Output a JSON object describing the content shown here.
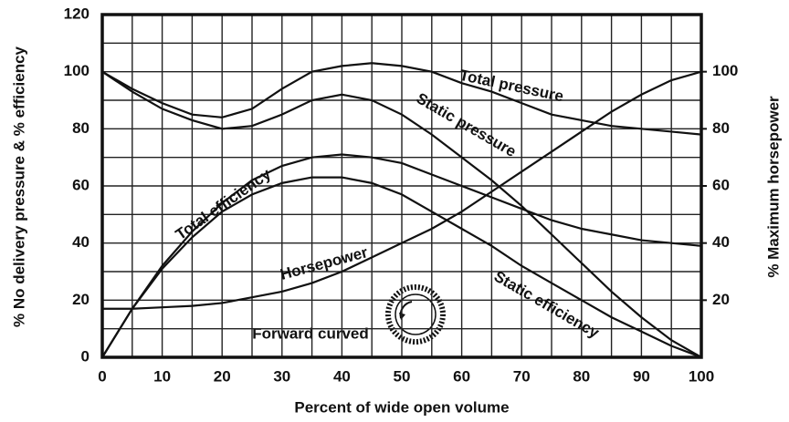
{
  "chart_data": {
    "type": "line",
    "x_label": "Percent of wide open volume",
    "y_label": "% No delivery pressure & % efficiency",
    "y2_label": "% Maximum horsepower",
    "annotation": "Forward curved",
    "x": [
      0,
      5,
      10,
      15,
      20,
      25,
      30,
      35,
      40,
      45,
      50,
      55,
      60,
      65,
      70,
      75,
      80,
      85,
      90,
      95,
      100
    ],
    "series": [
      {
        "name": "Total pressure",
        "color": "#111111",
        "values": [
          100,
          94,
          89,
          85,
          84,
          87,
          94,
          100,
          102,
          103,
          102,
          100,
          96,
          93,
          89,
          85,
          83,
          81,
          80,
          79,
          78
        ]
      },
      {
        "name": "Static pressure",
        "color": "#111111",
        "values": [
          100,
          93,
          87,
          83,
          80,
          81,
          85,
          90,
          92,
          90,
          85,
          78,
          70,
          62,
          53,
          43,
          33,
          23,
          14,
          6,
          0
        ]
      },
      {
        "name": "Total efficiency",
        "color": "#111111",
        "values": [
          0,
          17,
          32,
          44,
          54,
          62,
          67,
          70,
          71,
          70,
          68,
          64,
          60,
          56,
          52,
          48,
          45,
          43,
          41,
          40,
          39
        ]
      },
      {
        "name": "Static efficiency",
        "color": "#111111",
        "values": [
          0,
          17,
          31,
          42,
          51,
          57,
          61,
          63,
          63,
          61,
          57,
          51,
          45,
          39,
          32,
          26,
          20,
          14,
          9,
          4,
          0
        ]
      },
      {
        "name": "Horsepower",
        "color": "#111111",
        "axis": "y2",
        "values": [
          17,
          17,
          17.5,
          18,
          19,
          21,
          23,
          26,
          30,
          35,
          40,
          45,
          51,
          58,
          65,
          72,
          79,
          86,
          92,
          97,
          100
        ]
      }
    ],
    "xlim": [
      0,
      100
    ],
    "xticks": [
      0,
      10,
      20,
      30,
      40,
      50,
      60,
      70,
      80,
      90,
      100
    ],
    "x_grid": [
      5,
      15,
      25,
      35,
      45,
      55,
      65,
      75,
      85,
      95
    ],
    "ylim": [
      0,
      120
    ],
    "yticks": [
      0,
      20,
      40,
      60,
      80,
      100,
      120
    ],
    "y_grid": [
      10,
      30,
      50,
      70,
      90,
      110
    ],
    "y2lim": [
      0,
      120
    ],
    "y2ticks": [
      20,
      40,
      60,
      80,
      100
    ],
    "grid": true,
    "legend": "none"
  }
}
